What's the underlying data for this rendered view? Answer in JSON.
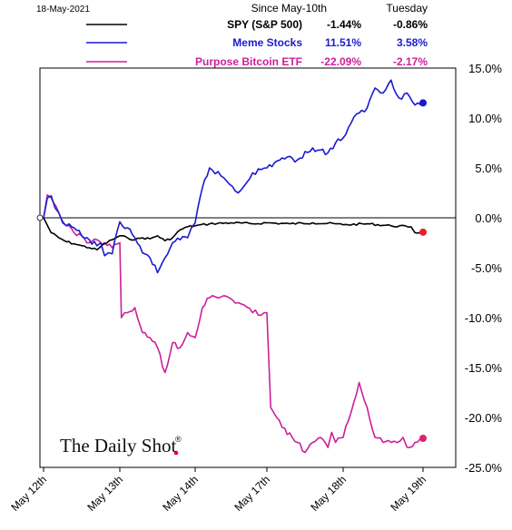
{
  "header": {
    "date": "18-May-2021",
    "col1": "Since May-10th",
    "col2": "Tuesday"
  },
  "logo": {
    "text": "The Daily Shot",
    "mark": "®",
    "dot_color": "#e8002a"
  },
  "chart_data": {
    "type": "line",
    "title": "",
    "xlabel": "",
    "ylabel": "",
    "ylim": [
      -25,
      15
    ],
    "yticks": [
      "15.0%",
      "10.0%",
      "5.0%",
      "0.0%",
      "-5.0%",
      "-10.0%",
      "-15.0%",
      "-20.0%",
      "-25.0%"
    ],
    "ytick_values": [
      15,
      10,
      5,
      0,
      -5,
      -10,
      -15,
      -20,
      -25
    ],
    "y_axis_position": "right",
    "grid": false,
    "legend_position": "top",
    "x_categories": [
      "May 12th",
      "May 13th",
      "May 14th",
      "May 17th",
      "May 18th",
      "May 19th"
    ],
    "series": [
      {
        "name": "SPY (S&P 500)",
        "since": "-1.44%",
        "tuesday": "-0.86%",
        "color": "#000000",
        "label_color": "#000000",
        "end_marker_color": "#e8202a",
        "x": [
          0,
          0.1,
          0.2,
          0.3,
          0.4,
          0.5,
          0.6,
          0.7,
          0.8,
          0.9,
          1.0,
          1.1,
          1.2,
          1.3,
          1.4,
          1.5,
          1.6,
          1.7,
          1.8,
          1.9,
          2.0,
          2.2,
          2.5,
          2.8,
          3.0,
          3.3,
          3.6,
          3.9,
          4.0,
          4.3,
          4.6,
          4.85,
          4.9,
          5.0
        ],
        "values": [
          0,
          -1.5,
          -2.0,
          -2.4,
          -2.6,
          -2.8,
          -3.0,
          -3.2,
          -2.6,
          -2.2,
          -1.8,
          -2.0,
          -2.2,
          -2.0,
          -2.1,
          -1.8,
          -2.3,
          -2.0,
          -1.2,
          -0.9,
          -0.8,
          -0.6,
          -0.5,
          -0.6,
          -0.5,
          -0.6,
          -0.5,
          -0.6,
          -0.7,
          -0.6,
          -0.8,
          -0.9,
          -1.5,
          -1.44
        ]
      },
      {
        "name": "Meme Stocks",
        "since": "11.51%",
        "tuesday": "3.58%",
        "color": "#1a1ad0",
        "label_color": "#1a1ad0",
        "end_marker_color": "#1a1ad0",
        "x": [
          0,
          0.05,
          0.1,
          0.15,
          0.2,
          0.25,
          0.3,
          0.4,
          0.5,
          0.6,
          0.7,
          0.75,
          0.8,
          0.85,
          0.9,
          1.0,
          1.1,
          1.2,
          1.3,
          1.4,
          1.5,
          1.6,
          1.7,
          1.8,
          1.9,
          1.95,
          2.0,
          2.1,
          2.2,
          2.4,
          2.6,
          2.8,
          3.0,
          3.2,
          3.4,
          3.6,
          3.8,
          3.9,
          4.0,
          4.1,
          4.2,
          4.3,
          4.4,
          4.5,
          4.6,
          4.7,
          4.8,
          4.9,
          5.0
        ],
        "values": [
          0,
          2.0,
          2.2,
          1.0,
          0.5,
          -0.5,
          -0.8,
          -1.0,
          -1.8,
          -2.2,
          -2.8,
          -2.5,
          -3.8,
          -3.5,
          -3.6,
          -0.4,
          -1.0,
          -2.0,
          -3.5,
          -4.0,
          -5.5,
          -4.0,
          -2.5,
          -2.2,
          -2.0,
          -1.0,
          -0.5,
          3.0,
          5.0,
          4.0,
          2.5,
          4.5,
          5.0,
          6.0,
          5.8,
          7.0,
          6.5,
          7.5,
          8.0,
          9.5,
          10.5,
          11.0,
          13.0,
          12.5,
          13.8,
          12.0,
          12.5,
          11.3,
          11.51
        ]
      },
      {
        "name": "Purpose Bitcoin ETF",
        "since": "-22.09%",
        "tuesday": "-2.17%",
        "color": "#cc1f99",
        "label_color": "#cc1f99",
        "end_marker_color": "#e0206e",
        "x": [
          0,
          0.05,
          0.1,
          0.2,
          0.3,
          0.4,
          0.5,
          0.6,
          0.7,
          0.8,
          0.9,
          1.0,
          1.02,
          1.1,
          1.2,
          1.3,
          1.4,
          1.5,
          1.6,
          1.7,
          1.8,
          1.9,
          2.0,
          2.1,
          2.2,
          2.4,
          2.6,
          2.8,
          3.0,
          3.05,
          3.2,
          3.4,
          3.5,
          3.6,
          3.7,
          3.8,
          3.85,
          3.9,
          4.0,
          4.2,
          4.4,
          4.6,
          4.75,
          4.8,
          4.9,
          5.0
        ],
        "values": [
          0,
          2.3,
          2.0,
          0.5,
          -0.8,
          -1.5,
          -1.8,
          -2.5,
          -2.2,
          -2.5,
          -3.0,
          -2.5,
          -10.0,
          -9.5,
          -9.0,
          -11.5,
          -12.0,
          -13.0,
          -15.5,
          -12.5,
          -13.0,
          -11.5,
          -12.0,
          -9.0,
          -8.0,
          -7.8,
          -8.5,
          -9.5,
          -9.5,
          -19.0,
          -21.0,
          -22.5,
          -23.5,
          -22.5,
          -22.0,
          -23.0,
          -21.5,
          -22.5,
          -22.0,
          -16.5,
          -22.0,
          -22.5,
          -22.0,
          -23.0,
          -22.5,
          -22.09
        ]
      }
    ]
  }
}
